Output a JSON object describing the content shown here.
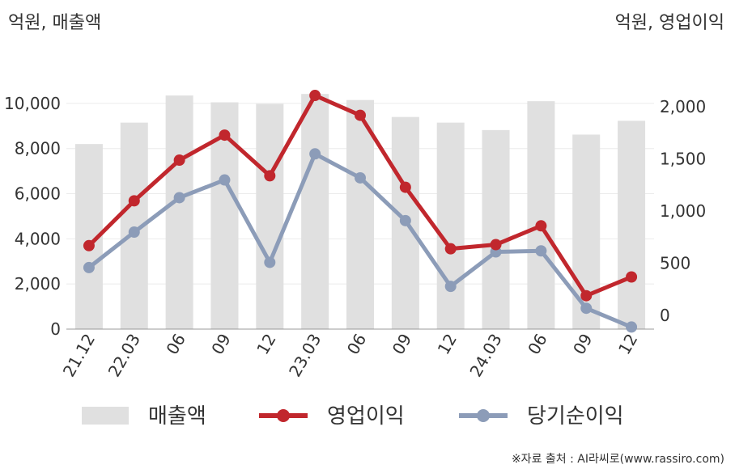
{
  "chart_data": {
    "type": "bar",
    "left_unit": "억원, 매출액",
    "right_unit": "억원, 영업이익",
    "categories": [
      "21.12",
      "22.03",
      "06",
      "09",
      "12",
      "23.03",
      "06",
      "09",
      "12",
      "24.03",
      "06",
      "09",
      "12"
    ],
    "left_axis": {
      "ticks": [
        "0",
        "2,000",
        "4,000",
        "6,000",
        "8,000",
        "10,000"
      ],
      "ylim": [
        0,
        11000
      ]
    },
    "right_axis": {
      "ticks": [
        "0",
        "500",
        "1,000",
        "1,500",
        "2,000"
      ],
      "ylim": [
        -130,
        2250
      ]
    },
    "series": [
      {
        "name": "매출액",
        "type": "bar",
        "axis": "left",
        "color": "#e0e0e0",
        "values": [
          8200,
          9150,
          10350,
          10050,
          9980,
          10420,
          10150,
          9400,
          9150,
          8820,
          10100,
          8620,
          9230
        ]
      },
      {
        "name": "영업이익",
        "type": "line",
        "axis": "right",
        "color": "#c1272d",
        "values": [
          670,
          1100,
          1490,
          1730,
          1340,
          2110,
          1920,
          1230,
          640,
          680,
          860,
          190,
          370
        ]
      },
      {
        "name": "당기순이익",
        "type": "line",
        "axis": "right",
        "color": "#8c9cb8",
        "values": [
          460,
          800,
          1130,
          1300,
          510,
          1550,
          1320,
          910,
          280,
          610,
          620,
          70,
          -110
        ]
      }
    ],
    "grid": true,
    "legend": "bottom"
  },
  "source": "※자료 출처 : AI라씨로(www.rassiro.com)"
}
